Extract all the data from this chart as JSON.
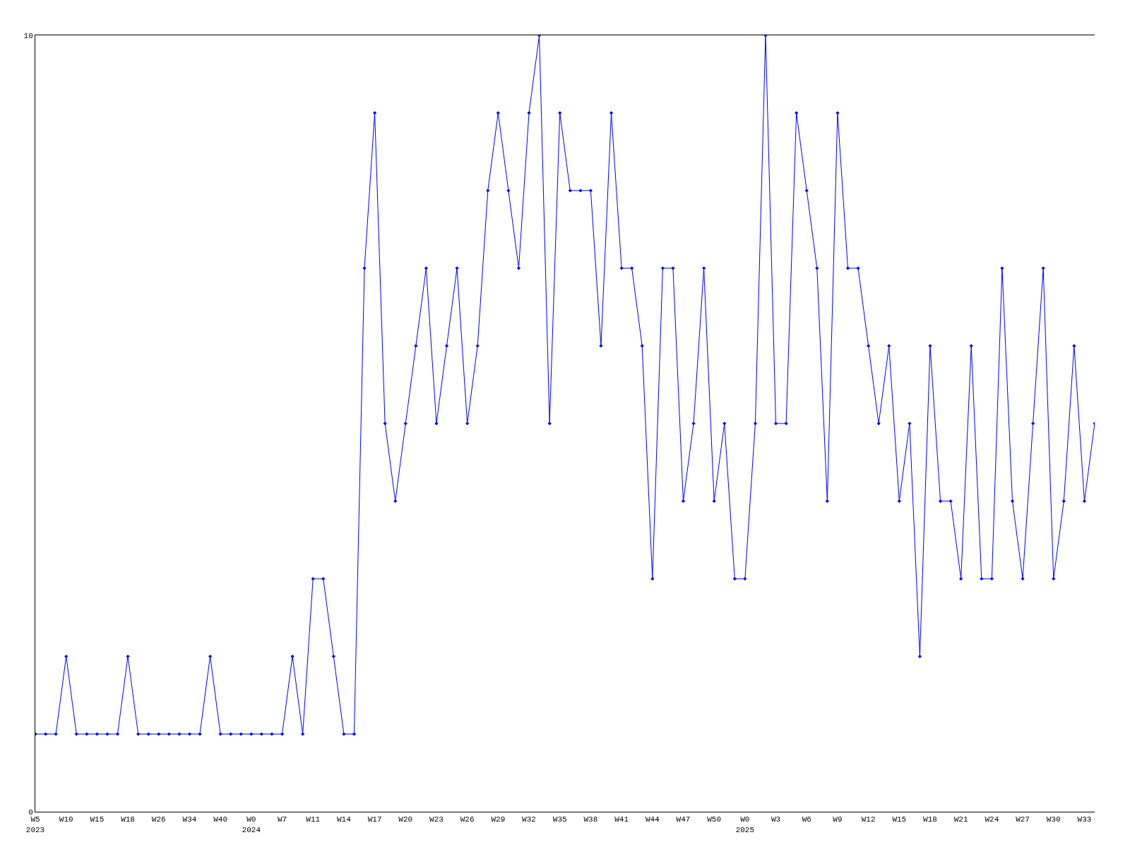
{
  "chart_data": {
    "type": "line",
    "categories": [
      "W5\n2023",
      null,
      null,
      "W10",
      null,
      null,
      "W15",
      null,
      null,
      "W18",
      null,
      null,
      "W26",
      null,
      null,
      "W34",
      null,
      null,
      "W40",
      null,
      null,
      "W0\n2024",
      null,
      null,
      "W7",
      null,
      null,
      "W11",
      null,
      null,
      "W14",
      null,
      null,
      "W17",
      null,
      null,
      "W20",
      null,
      null,
      "W23",
      null,
      null,
      "W26",
      null,
      null,
      "W29",
      null,
      null,
      "W32",
      null,
      null,
      "W35",
      null,
      null,
      "W38",
      null,
      null,
      "W41",
      null,
      null,
      "W44",
      null,
      null,
      "W47",
      null,
      null,
      "W50",
      null,
      null,
      "W0\n2025",
      null,
      null,
      "W3",
      null,
      null,
      "W6",
      null,
      null,
      "W9",
      null,
      null,
      "W12",
      null,
      null,
      "W15",
      null,
      null,
      "W18",
      null,
      null,
      "W21",
      null,
      null,
      "W24",
      null,
      null,
      "W27",
      null,
      null,
      "W30",
      null,
      null,
      "W33",
      null
    ],
    "series": [
      {
        "color": "#0000ff",
        "values": [
          1,
          1,
          1,
          2,
          1,
          1,
          1,
          1,
          1,
          2,
          1,
          1,
          1,
          1,
          1,
          1,
          1,
          2,
          1,
          1,
          1,
          1,
          1,
          1,
          1,
          2,
          1,
          3,
          3,
          2,
          1,
          1,
          7,
          9,
          5,
          4,
          5,
          6,
          7,
          5,
          6,
          7,
          5,
          6,
          8,
          9,
          8,
          7,
          9,
          10,
          5,
          9,
          8,
          8,
          8,
          6,
          9,
          7,
          7,
          6,
          3,
          7,
          7,
          4,
          5,
          7,
          4,
          5,
          3,
          3,
          5,
          10,
          5,
          5,
          9,
          8,
          7,
          4,
          9,
          7,
          7,
          6,
          5,
          6,
          4,
          5,
          2,
          6,
          4,
          4,
          3,
          6,
          3,
          3,
          7,
          4,
          3,
          5,
          7,
          3,
          4,
          6,
          4,
          5
        ]
      }
    ],
    "ylim": [
      0,
      10
    ],
    "yticks": [
      0,
      10
    ],
    "legend": false,
    "marker": "diamond",
    "line_style": "solid"
  }
}
